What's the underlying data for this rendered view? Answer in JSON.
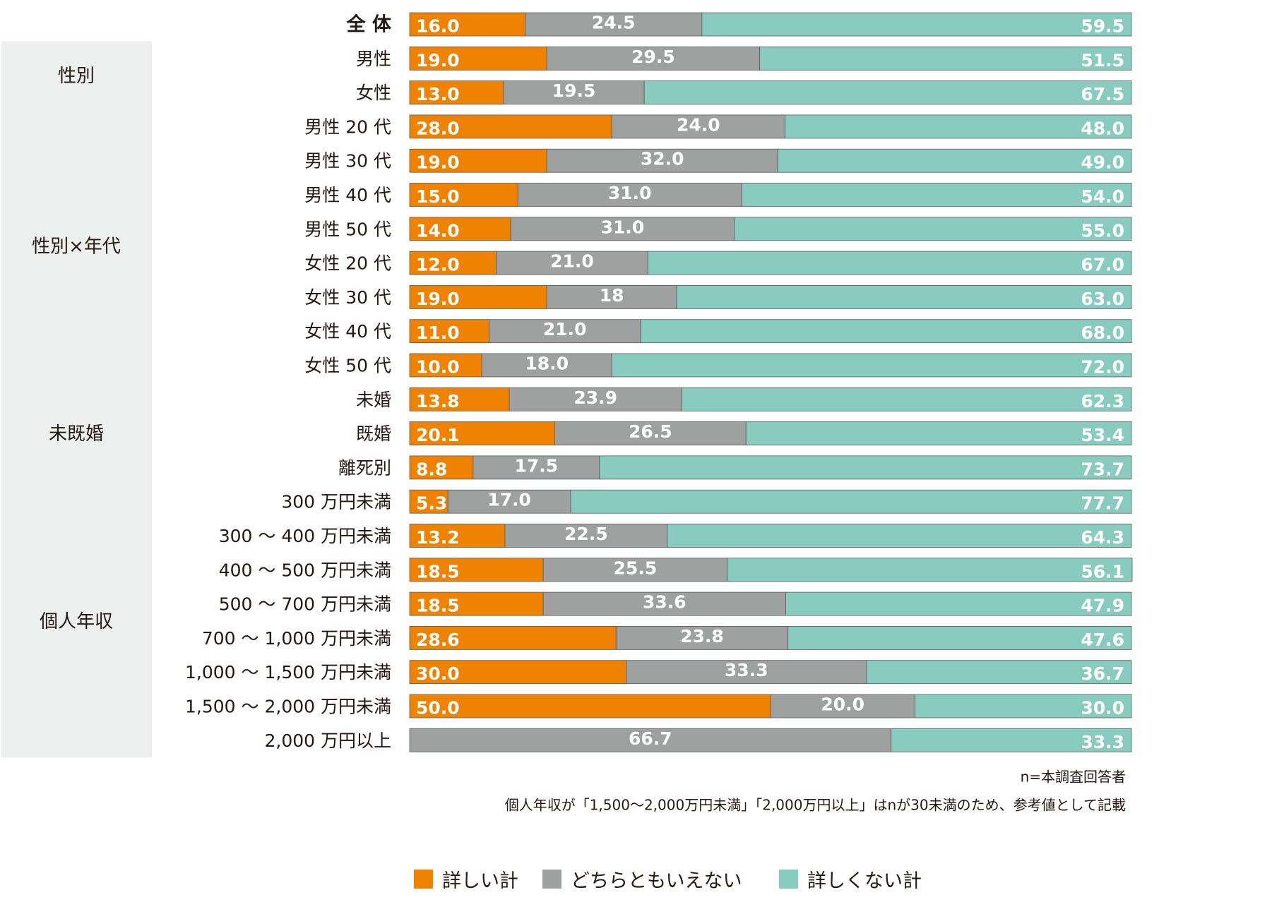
{
  "chart_data": {
    "type": "bar",
    "orientation": "horizontal",
    "stacked": true,
    "percent": true,
    "xlim": [
      0,
      100
    ],
    "categories": [
      "全 体",
      "男性",
      "女性",
      "男性 20 代",
      "男性 30 代",
      "男性 40 代",
      "男性 50 代",
      "女性 20 代",
      "女性 30 代",
      "女性 40 代",
      "女性 50 代",
      "未婚",
      "既婚",
      "離死別",
      "300 万円未満",
      "300 ～ 400 万円未満",
      "400 ～ 500 万円未満",
      "500 ～ 700 万円未満",
      "700 ～ 1,000 万円未満",
      "1,000 ～ 1,500 万円未満",
      "1,500 ～ 2,000 万円未満",
      "2,000 万円以上"
    ],
    "series": [
      {
        "name": "詳しい計",
        "color": "#EF8200",
        "values": [
          16.0,
          19.0,
          13.0,
          28.0,
          19.0,
          15.0,
          14.0,
          12.0,
          19.0,
          11.0,
          10.0,
          13.8,
          20.1,
          8.8,
          5.3,
          13.2,
          18.5,
          18.5,
          28.6,
          30.0,
          50.0,
          0
        ],
        "labels": [
          "16.0",
          "19.0",
          "13.0",
          "28.0",
          "19.0",
          "15.0",
          "14.0",
          "12.0",
          "19.0",
          "11.0",
          "10.0",
          "13.8",
          "20.1",
          "8.8",
          "5.3",
          "13.2",
          "18.5",
          "18.5",
          "28.6",
          "30.0",
          "50.0",
          ""
        ]
      },
      {
        "name": "どちらともいえない",
        "color": "#9FA0A0",
        "values": [
          24.5,
          29.5,
          19.5,
          24.0,
          32.0,
          31.0,
          31.0,
          21.0,
          18.0,
          21.0,
          18.0,
          23.9,
          26.5,
          17.5,
          17.0,
          22.5,
          25.5,
          33.6,
          23.8,
          33.3,
          20.0,
          66.7
        ],
        "labels": [
          "24.5",
          "29.5",
          "19.5",
          "24.0",
          "32.0",
          "31.0",
          "31.0",
          "21.0",
          "18",
          "21.0",
          "18.0",
          "23.9",
          "26.5",
          "17.5",
          "17.0",
          "22.5",
          "25.5",
          "33.6",
          "23.8",
          "33.3",
          "20.0",
          "66.7"
        ]
      },
      {
        "name": "詳しくない計",
        "color": "#88CCC0",
        "values": [
          59.5,
          51.5,
          67.5,
          48.0,
          49.0,
          54.0,
          55.0,
          67.0,
          63.0,
          68.0,
          72.0,
          62.3,
          53.4,
          73.7,
          77.7,
          64.3,
          56.1,
          47.9,
          47.6,
          36.7,
          30.0,
          33.3
        ],
        "labels": [
          "59.5",
          "51.5",
          "67.5",
          "48.0",
          "49.0",
          "54.0",
          "55.0",
          "67.0",
          "63.0",
          "68.0",
          "72.0",
          "62.3",
          "53.4",
          "73.7",
          "77.7",
          "64.3",
          "56.1",
          "47.9",
          "47.6",
          "36.7",
          "30.0",
          "33.3"
        ]
      }
    ],
    "groups": [
      {
        "label": "性別",
        "from": 1,
        "to": 2
      },
      {
        "label": "性別×年代",
        "from": 3,
        "to": 10
      },
      {
        "label": "未既婚",
        "from": 11,
        "to": 13
      },
      {
        "label": "個人年収",
        "from": 14,
        "to": 21
      }
    ],
    "bold_rows": [
      0
    ],
    "notes": [
      "n=本調査回答者",
      "個人年収が「1,500～2,000万円未満」「2,000万円以上」はnが30未満のため、参考値として記載"
    ],
    "legend_position": "bottom"
  }
}
